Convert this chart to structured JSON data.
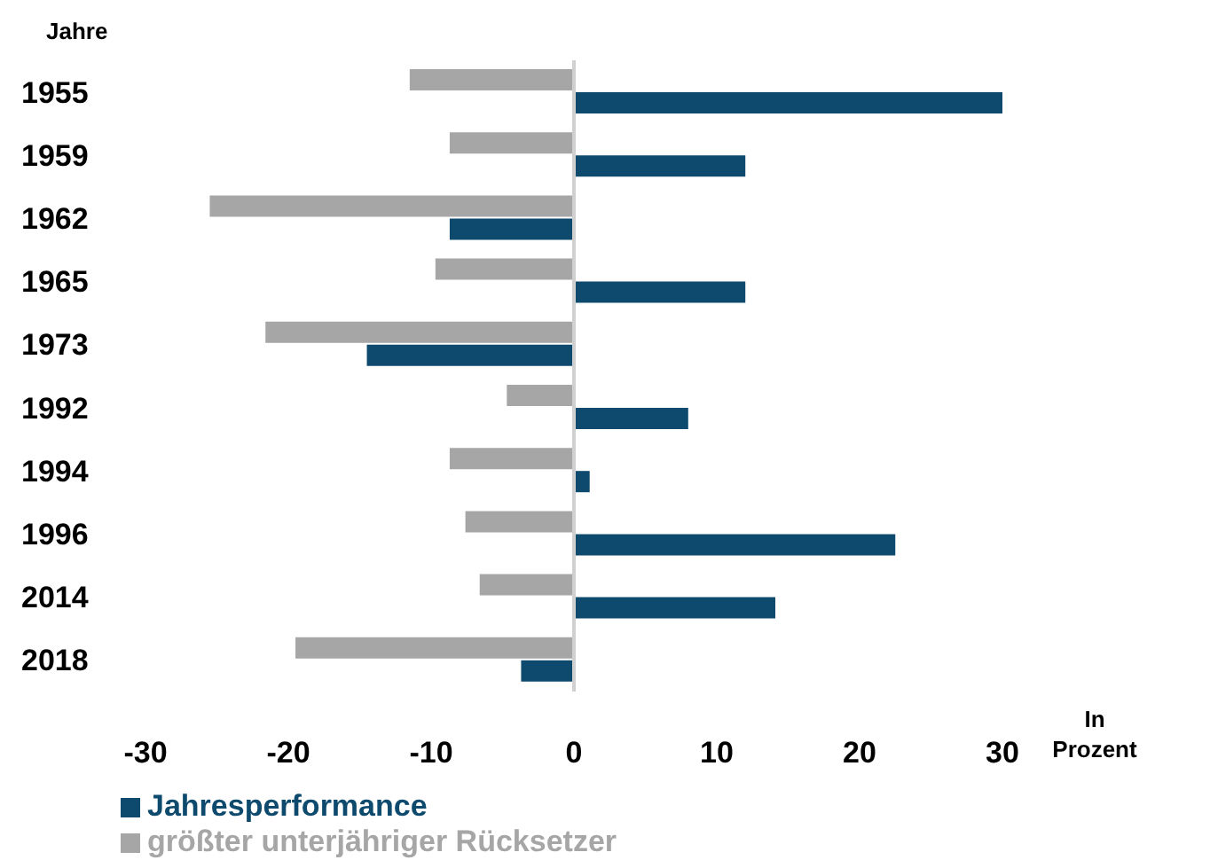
{
  "chart_data": {
    "type": "bar",
    "orientation": "horizontal",
    "ylabel": "Jahre",
    "xlabel": "In Prozent",
    "categories": [
      "1955",
      "1959",
      "1962",
      "1965",
      "1973",
      "1992",
      "1994",
      "1996",
      "2014",
      "2018"
    ],
    "series": [
      {
        "name": "größter unterjähriger Rücksetzer",
        "color": "#a6a6a6",
        "values": [
          -11.5,
          -8.7,
          -25.5,
          -9.7,
          -21.6,
          -4.7,
          -8.7,
          -7.6,
          -6.6,
          -19.5
        ]
      },
      {
        "name": "Jahresperformance",
        "color": "#0e4a6e",
        "values": [
          30,
          12,
          -8.7,
          12,
          -14.5,
          8,
          1.1,
          22.5,
          14.1,
          -3.7
        ]
      }
    ],
    "xlim": [
      -30,
      30
    ],
    "xticks": [
      -30,
      -20,
      -10,
      0,
      10,
      20,
      30
    ],
    "ref_lines": [
      {
        "axis": "x",
        "value": 0,
        "color": "#d0d0d0"
      }
    ],
    "grid": false,
    "legend": "bottom"
  }
}
